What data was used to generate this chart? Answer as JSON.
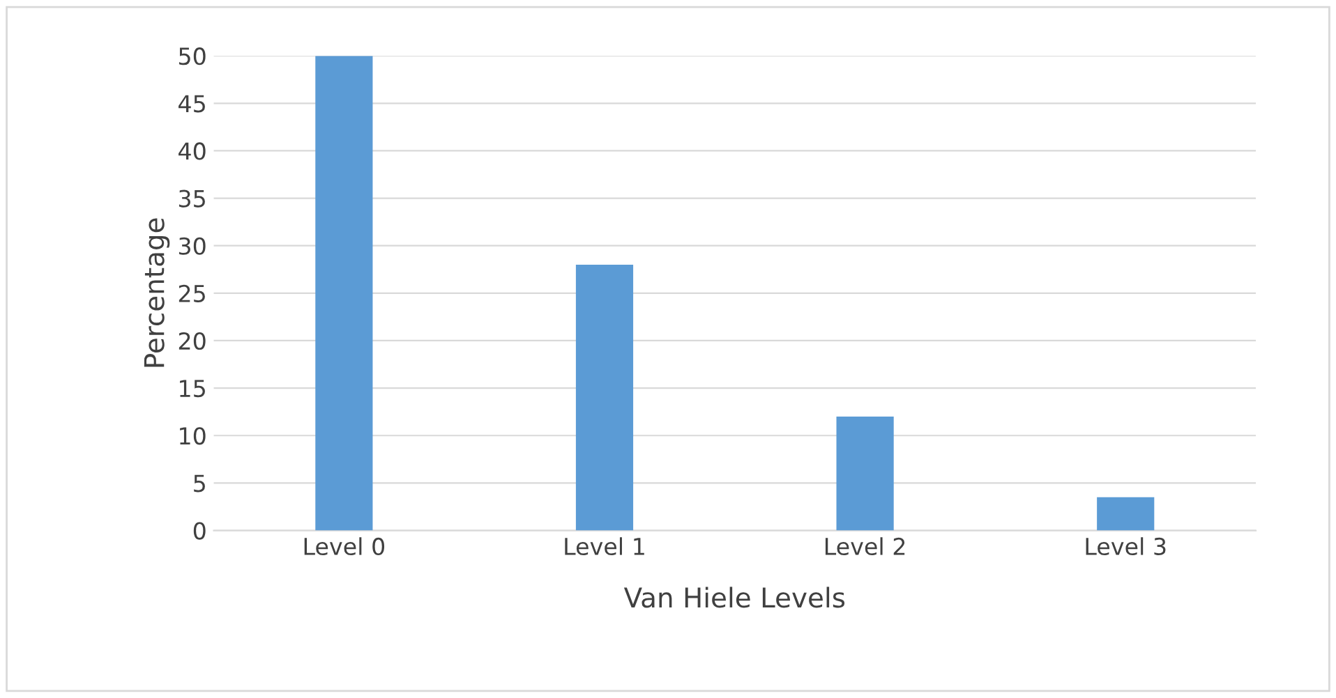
{
  "chart_data": {
    "type": "bar",
    "xlabel": "Van Hiele Levels",
    "ylabel": "Percentage",
    "categories": [
      "Level 0",
      "Level 1",
      "Level 2",
      "Level 3"
    ],
    "values": [
      50,
      28,
      12,
      3.5
    ],
    "color": "#5b9bd5",
    "ylim": [
      0,
      50
    ],
    "yticks": [
      0,
      5,
      10,
      15,
      20,
      25,
      30,
      35,
      40,
      45,
      50
    ],
    "grid": "y"
  }
}
